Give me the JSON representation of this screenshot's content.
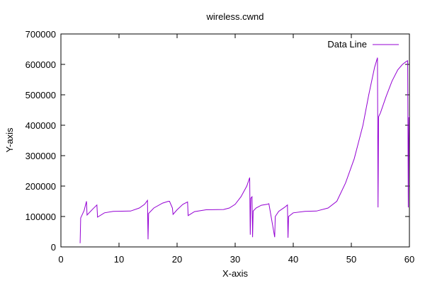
{
  "chart_data": {
    "type": "line",
    "title": "wireless.cwnd",
    "xlabel": "X-axis",
    "ylabel": "Y-axis",
    "xlim": [
      0,
      60
    ],
    "ylim": [
      0,
      700000
    ],
    "xticks": [
      0,
      10,
      20,
      30,
      40,
      50,
      60
    ],
    "yticks": [
      0,
      100000,
      200000,
      300000,
      400000,
      500000,
      600000,
      700000
    ],
    "grid": false,
    "legend": "top-right",
    "series": [
      {
        "name": "Data Line",
        "color": "#9400d3",
        "points": [
          [
            3.3,
            12000
          ],
          [
            3.4,
            95000
          ],
          [
            4.0,
            120000
          ],
          [
            4.4,
            150000
          ],
          [
            4.5,
            105000
          ],
          [
            5.5,
            125000
          ],
          [
            6.2,
            138000
          ],
          [
            6.3,
            98000
          ],
          [
            7.5,
            112000
          ],
          [
            9.0,
            117000
          ],
          [
            12.0,
            118000
          ],
          [
            13.5,
            128000
          ],
          [
            14.4,
            140000
          ],
          [
            14.9,
            153000
          ],
          [
            15.0,
            25000
          ],
          [
            15.1,
            110000
          ],
          [
            16.0,
            128000
          ],
          [
            17.5,
            144000
          ],
          [
            18.5,
            150000
          ],
          [
            18.7,
            150000
          ],
          [
            19.2,
            128000
          ],
          [
            19.3,
            107000
          ],
          [
            20.0,
            122000
          ],
          [
            21.0,
            140000
          ],
          [
            21.8,
            148000
          ],
          [
            21.9,
            103000
          ],
          [
            23.0,
            116000
          ],
          [
            25.0,
            122000
          ],
          [
            28.0,
            123000
          ],
          [
            29.0,
            128000
          ],
          [
            30.0,
            140000
          ],
          [
            31.0,
            165000
          ],
          [
            32.0,
            200000
          ],
          [
            32.5,
            228000
          ],
          [
            32.6,
            40000
          ],
          [
            32.7,
            160000
          ],
          [
            32.9,
            165000
          ],
          [
            33.0,
            32000
          ],
          [
            33.1,
            118000
          ],
          [
            33.6,
            128000
          ],
          [
            34.5,
            137000
          ],
          [
            35.5,
            140000
          ],
          [
            35.8,
            142000
          ],
          [
            36.8,
            32000
          ],
          [
            36.9,
            100000
          ],
          [
            37.5,
            117000
          ],
          [
            38.5,
            130000
          ],
          [
            39.0,
            138000
          ],
          [
            39.1,
            30000
          ],
          [
            39.2,
            100000
          ],
          [
            40.0,
            112000
          ],
          [
            42.0,
            117000
          ],
          [
            44.0,
            118000
          ],
          [
            46.0,
            128000
          ],
          [
            47.5,
            150000
          ],
          [
            49.0,
            210000
          ],
          [
            50.5,
            290000
          ],
          [
            52.0,
            400000
          ],
          [
            53.0,
            500000
          ],
          [
            54.0,
            590000
          ],
          [
            54.5,
            622000
          ],
          [
            54.6,
            130000
          ],
          [
            54.7,
            428000
          ],
          [
            55.0,
            440000
          ],
          [
            56.0,
            495000
          ],
          [
            57.0,
            545000
          ],
          [
            58.0,
            582000
          ],
          [
            58.8,
            600000
          ],
          [
            59.5,
            610000
          ],
          [
            59.7,
            612000
          ],
          [
            59.8,
            130000
          ],
          [
            59.9,
            425000
          ],
          [
            60.4,
            445000
          ],
          [
            61.0,
            453000
          ]
        ]
      }
    ]
  }
}
